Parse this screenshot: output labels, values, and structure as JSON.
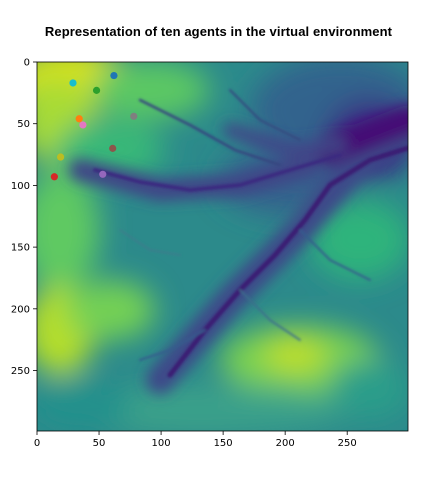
{
  "chart_data": {
    "type": "heatmap",
    "title": "Representation of ten agents in the virtual environment",
    "xlabel": "",
    "ylabel": "",
    "xlim": [
      0,
      299
    ],
    "ylim": [
      299,
      0
    ],
    "x_ticks": [
      0,
      50,
      100,
      150,
      200,
      250
    ],
    "y_ticks": [
      0,
      50,
      100,
      150,
      200,
      250
    ],
    "colormap": "viridis",
    "grid": false,
    "legend": "none",
    "series": [
      {
        "x": 29,
        "y": 17,
        "color": "#17becf"
      },
      {
        "x": 62,
        "y": 11,
        "color": "#1f77b4"
      },
      {
        "x": 48,
        "y": 23,
        "color": "#2ca02c"
      },
      {
        "x": 78,
        "y": 44,
        "color": "#7f7f7f"
      },
      {
        "x": 34,
        "y": 46,
        "color": "#ff7f0e"
      },
      {
        "x": 37,
        "y": 51,
        "color": "#e377c2"
      },
      {
        "x": 61,
        "y": 70,
        "color": "#8c564b"
      },
      {
        "x": 19,
        "y": 77,
        "color": "#bcbd22"
      },
      {
        "x": 14,
        "y": 93,
        "color": "#d62728"
      },
      {
        "x": 53,
        "y": 91,
        "color": "#9467bd"
      }
    ]
  }
}
